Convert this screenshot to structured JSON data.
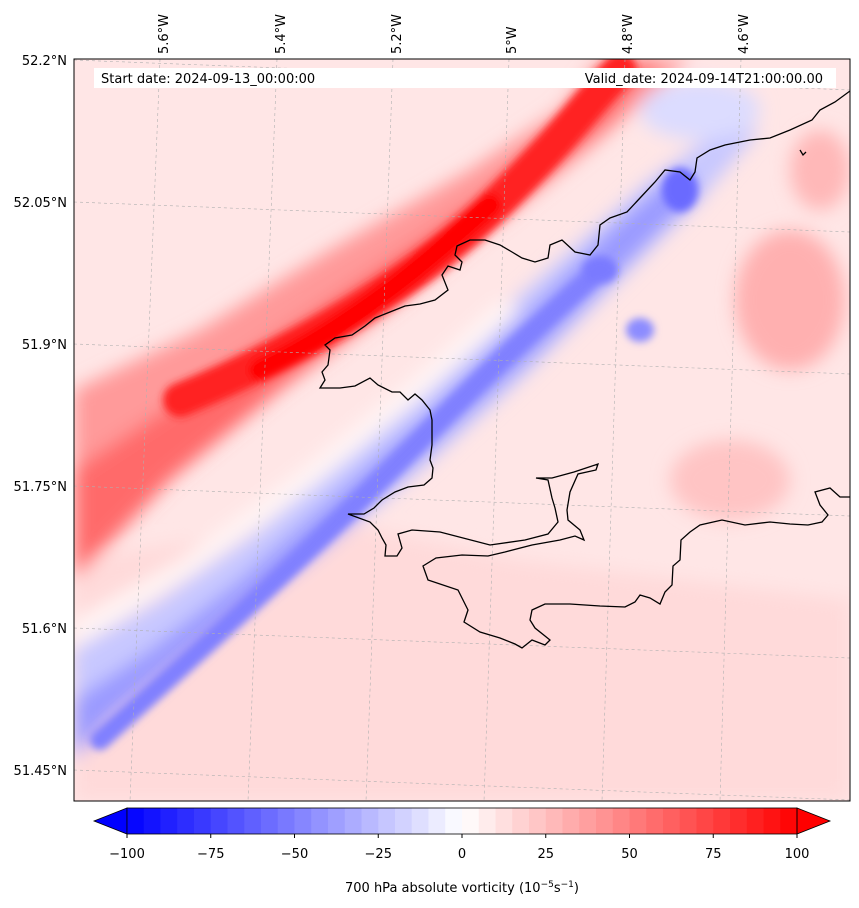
{
  "map": {
    "start_label": "Start date: 2024-09-13_00:00:00",
    "valid_label": "Valid_date: 2024-09-14T21:00:00.00",
    "lon_ticks": [
      "5.6°W",
      "5.4°W",
      "5.2°W",
      "5°W",
      "4.8°W",
      "4.6°W"
    ],
    "lat_ticks": [
      "52.2°N",
      "52.05°N",
      "51.9°N",
      "51.75°N",
      "51.6°N",
      "51.45°N"
    ],
    "field": "700 hPa absolute vorticity",
    "colors": {
      "positive": "#ff0000",
      "negative": "#0000ff",
      "neutral": "#ffffff",
      "coastline": "#000000"
    }
  },
  "colorbar": {
    "ticks": [
      "−100",
      "−75",
      "−50",
      "−25",
      "0",
      "25",
      "50",
      "75",
      "100"
    ],
    "values": [
      -100,
      -75,
      -50,
      -25,
      0,
      25,
      50,
      75,
      100
    ],
    "label_prefix": "700 hPa absolute vorticity (10",
    "label_exp1": "−5",
    "label_mid": "s",
    "label_exp2": "−1",
    "label_suffix": ")",
    "extend": "both"
  }
}
